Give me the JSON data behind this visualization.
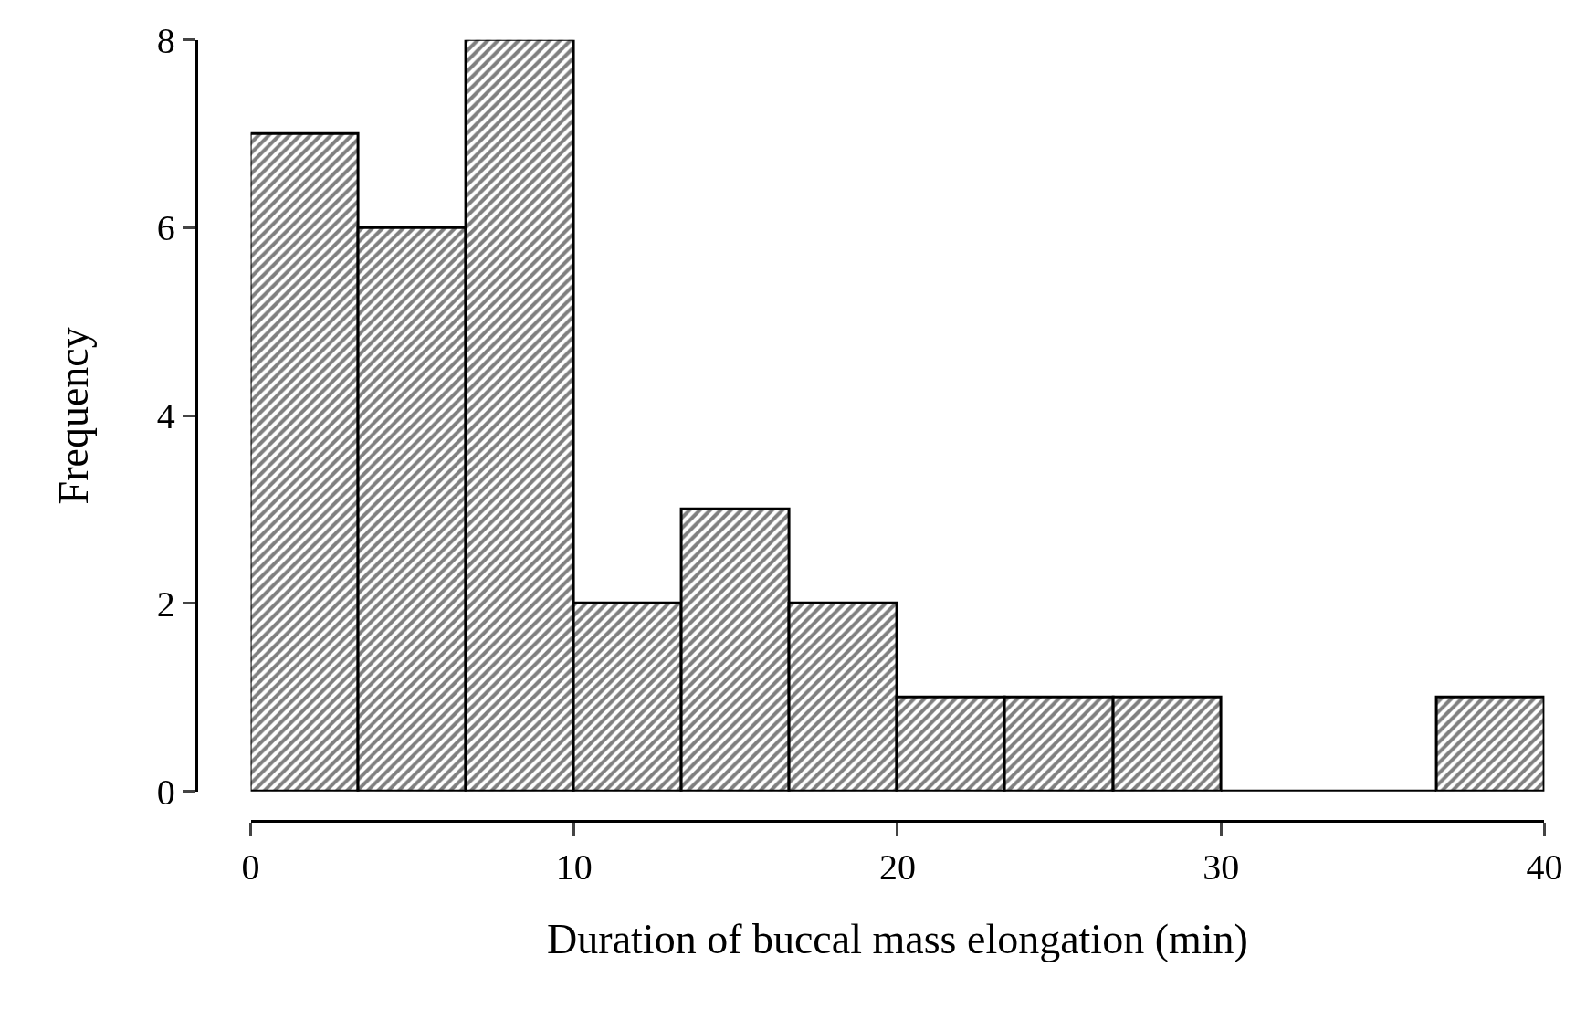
{
  "chart_data": {
    "type": "histogram",
    "xlabel": "Duration of buccal mass elongation (min)",
    "ylabel": "Frequency",
    "bins": [
      0,
      3.33,
      6.67,
      10,
      13.33,
      16.67,
      20,
      23.33,
      26.67,
      30,
      33.33,
      36.67,
      40
    ],
    "values": [
      7,
      6,
      8,
      2,
      3,
      2,
      1,
      1,
      1,
      0,
      0,
      1
    ],
    "color": "#000000",
    "xlim": [
      0,
      40
    ],
    "xticks": [
      0,
      10,
      20,
      30,
      40
    ],
    "ylim": [
      0,
      8
    ],
    "yticks": [
      0,
      2,
      4,
      6,
      8
    ]
  }
}
